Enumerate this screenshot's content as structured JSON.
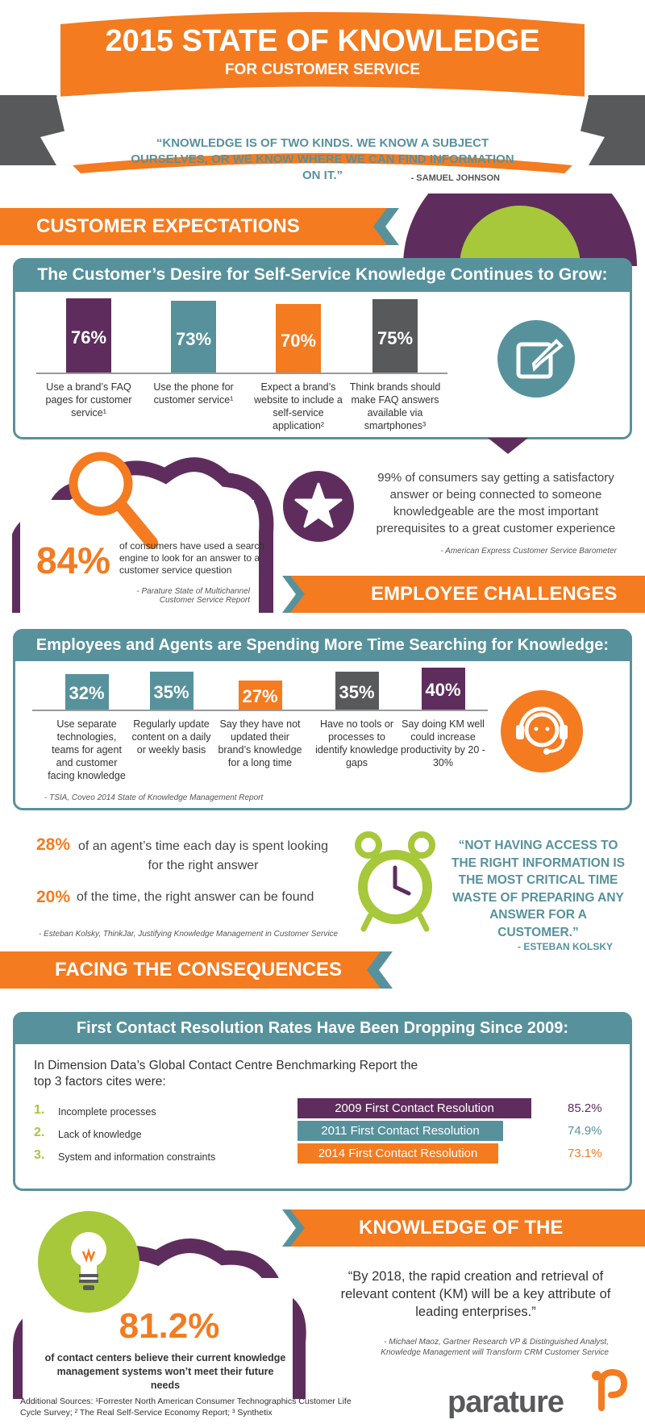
{
  "header": {
    "title": "2015 STATE OF KNOWLEDGE",
    "subtitle": "FOR CUSTOMER SERVICE",
    "quote": "“KNOWLEDGE IS OF TWO KINDS. WE KNOW A SUBJECT OURSELVES, OR WE KNOW WHERE WE CAN FIND INFORMATION ON IT.”",
    "quote_author": "- SAMUEL JOHNSON"
  },
  "customer": {
    "banner": "CUSTOMER EXPECTATIONS",
    "card_title": "The Customer’s Desire for Self-Service Knowledge Continues to Grow:",
    "stats": [
      {
        "value": "76%",
        "label": "Use a brand’s FAQ pages for customer service¹"
      },
      {
        "value": "73%",
        "label": "Use the phone for customer service¹"
      },
      {
        "value": "70%",
        "label": "Expect a brand’s website to include a self-service application²"
      },
      {
        "value": "75%",
        "label": "Think brands should make FAQ answers available via smartphones³"
      }
    ],
    "stat99": "99% of consumers say getting a satisfactory answer or being connected to someone knowledgeable are the most important prerequisites to a great customer experience",
    "stat99_cite": "- American Express Customer Service Barometer",
    "stat84_value": "84%",
    "stat84_text": "of consumers have used a search engine to look for an answer to a customer service question",
    "stat84_cite": "- Parature State of Multichannel Customer Service Report"
  },
  "employee": {
    "banner": "EMPLOYEE CHALLENGES",
    "card_title": "Employees and Agents are Spending More Time Searching for Knowledge:",
    "stats": [
      {
        "value": "32%",
        "label": "Use separate technologies, teams for agent and customer facing knowledge"
      },
      {
        "value": "35%",
        "label": "Regularly update content on a daily or weekly basis"
      },
      {
        "value": "27%",
        "label": "Say they have not updated their brand’s knowledge for a long time"
      },
      {
        "value": "35%",
        "label": "Have no tools or processes to identify knowledge gaps"
      },
      {
        "value": "40%",
        "label": "Say doing KM well could increase productivity by 20 - 30%"
      }
    ],
    "cite": "- TSIA, Coveo 2014 State of Knowledge Management Report",
    "stat28_value": "28%",
    "stat28_text": "of an agent’s time each day is spent looking for the right answer",
    "stat20_value": "20%",
    "stat20_text": "of the time, the right answer can be found",
    "stats_cite": "- Esteban Kolsky, ThinkJar, Justifying Knowledge Management in Customer Service",
    "quote": "“NOT HAVING ACCESS TO THE RIGHT INFORMATION IS THE MOST CRITICAL TIME WASTE OF PREPARING ANY ANSWER FOR A CUSTOMER.”",
    "quote_author": "- ESTEBAN KOLSKY"
  },
  "consequences": {
    "banner": "FACING THE CONSEQUENCES",
    "card_title": "First Contact Resolution Rates Have Been Dropping Since 2009:",
    "intro": "In Dimension Data’s Global Contact Centre Benchmarking Report the top 3 factors cites were:",
    "factors": [
      {
        "num": "1.",
        "text": "Incomplete processes"
      },
      {
        "num": "2.",
        "text": "Lack of knowledge"
      },
      {
        "num": "3.",
        "text": "System and information constraints"
      }
    ]
  },
  "future": {
    "banner": "KNOWLEDGE OF THE FUTURE",
    "stat_value": "81.2%",
    "stat_text": "of contact centers believe their current knowledge management systems won’t meet their future needs",
    "quote": "“By 2018, the rapid creation and retrieval of relevant content (KM) will be a key attribute of leading enterprises.”",
    "quote_cite": "- Michael Maoz, Gartner Research VP & Distinguished Analyst, Knowledge Management will Transform CRM Customer Service"
  },
  "footer": {
    "sources": "Additional Sources: ¹Forrester North American Consumer Technographics Customer Life Cycle Survey; ² The Real Self-Service Economy Report; ³ Synthetix",
    "logo": "parature"
  },
  "colors": {
    "purple": "#5e2d5d",
    "teal": "#57929c",
    "orange": "#f47b20",
    "gray": "#58595b",
    "green": "#a6c83a"
  },
  "chart_data": [
    {
      "type": "bar",
      "title": "The Customer’s Desire for Self-Service Knowledge Continues to Grow:",
      "categories": [
        "Use a brand’s FAQ pages for customer service",
        "Use the phone for customer service",
        "Expect a brand’s website to include a self-service application",
        "Think brands should make FAQ answers available via smartphones"
      ],
      "values": [
        76,
        73,
        70,
        75
      ],
      "colors": [
        "#5e2d5d",
        "#57929c",
        "#f47b20",
        "#58595b"
      ]
    },
    {
      "type": "bar",
      "title": "Employees and Agents are Spending More Time Searching for Knowledge:",
      "categories": [
        "Use separate technologies, teams for agent and customer facing knowledge",
        "Regularly update content on a daily or weekly basis",
        "Say they have not updated their brand’s knowledge for a long time",
        "Have no tools or processes to identify knowledge gaps",
        "Say doing KM well could increase productivity by 20 - 30%"
      ],
      "values": [
        32,
        35,
        27,
        35,
        40
      ],
      "colors": [
        "#57929c",
        "#57929c",
        "#f47b20",
        "#58595b",
        "#5e2d5d"
      ]
    },
    {
      "type": "bar",
      "title": "First Contact Resolution Rates Have Been Dropping Since 2009:",
      "categories": [
        "2009 First Contact Resolution",
        "2011 First Contact Resolution",
        "2014 First Contact Resolution"
      ],
      "values": [
        85.2,
        74.9,
        73.1
      ],
      "value_labels": [
        "85.2%",
        "74.9%",
        "73.1%"
      ],
      "colors": [
        "#5e2d5d",
        "#57929c",
        "#f47b20"
      ]
    }
  ]
}
